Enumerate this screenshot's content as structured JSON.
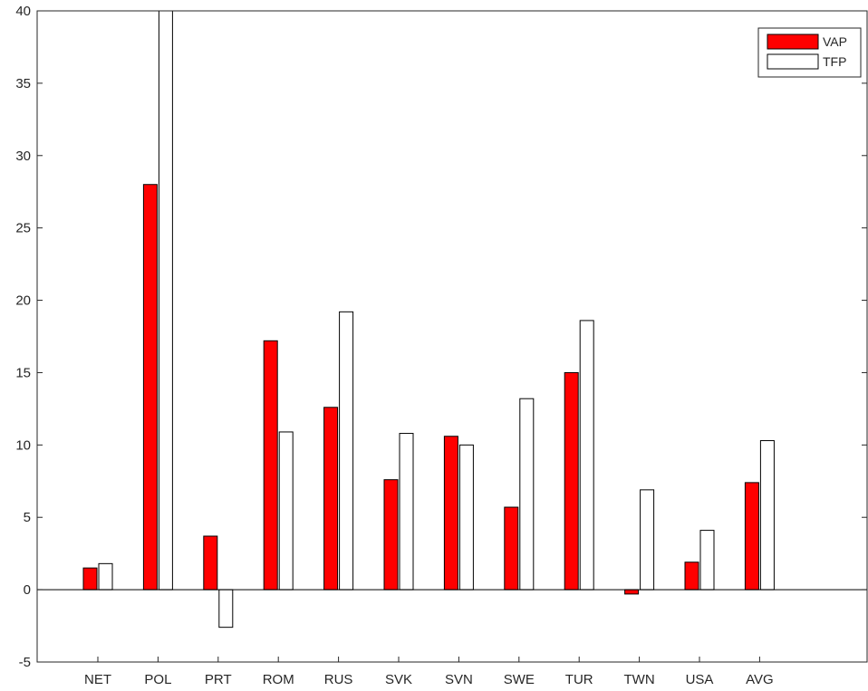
{
  "chart_data": {
    "type": "bar",
    "title": "",
    "xlabel": "",
    "ylabel": "",
    "ylim": [
      -5,
      40
    ],
    "yticks": [
      -5,
      0,
      5,
      10,
      15,
      20,
      25,
      30,
      35,
      40
    ],
    "grid": false,
    "legend_position": "top-right",
    "categories": [
      "NET",
      "POL",
      "PRT",
      "ROM",
      "RUS",
      "SVK",
      "SVN",
      "SWE",
      "TUR",
      "TWN",
      "USA",
      "AVG"
    ],
    "series": [
      {
        "name": "VAP",
        "color": "#ff0000",
        "values": [
          1.5,
          28.0,
          3.7,
          17.2,
          12.6,
          7.6,
          10.6,
          5.7,
          15.0,
          -0.3,
          1.9,
          7.4
        ]
      },
      {
        "name": "TFP",
        "color": "#ffffff",
        "values": [
          1.8,
          40.0,
          -2.6,
          10.9,
          19.2,
          10.8,
          10.0,
          13.2,
          18.6,
          6.9,
          4.1,
          10.3
        ]
      }
    ]
  }
}
